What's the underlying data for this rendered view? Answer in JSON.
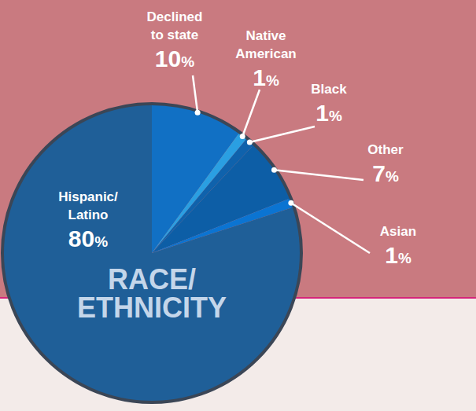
{
  "chart_data": {
    "type": "pie",
    "title": "RACE/ETHNICITY",
    "categories": [
      "Declined to state",
      "Native American",
      "Black",
      "Other",
      "Asian",
      "Hispanic/Latino"
    ],
    "values": [
      10,
      1,
      1,
      7,
      1,
      80
    ],
    "value_labels": [
      "10%",
      "1%",
      "1%",
      "7%",
      "1%",
      "80%"
    ],
    "data_labels": true,
    "colors": [
      "#1170c4",
      "#2a9fe2",
      "#0f62ac",
      "#0d5ea6",
      "#0b74d2",
      "#1f5f98"
    ]
  }
}
